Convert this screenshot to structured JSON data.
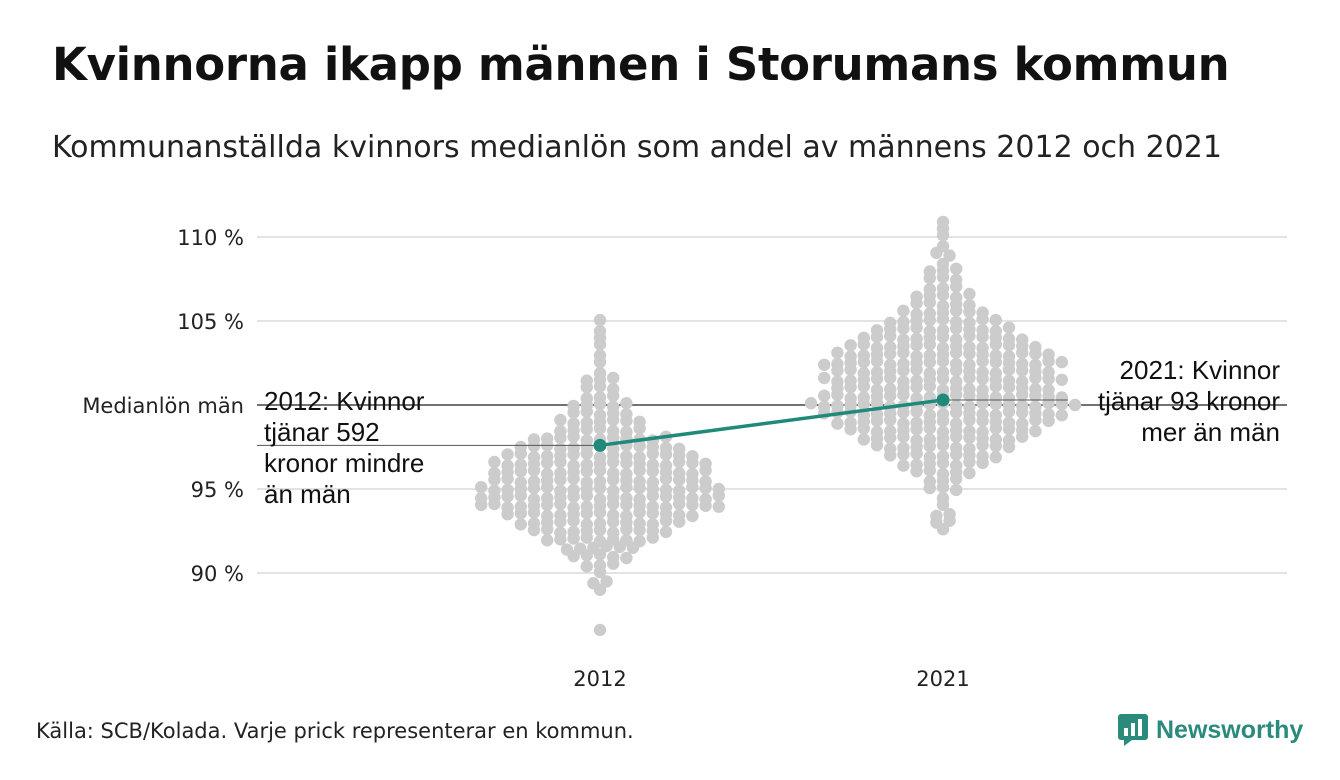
{
  "title": "Kvinnorna ikapp männen i Storumans kommun",
  "subtitle": "Kommunanställda kvinnors medianlön som andel av männens 2012 och 2021",
  "source": "Källa: SCB/Kolada. Varje prick representerar en kommun.",
  "brand": {
    "name": "Newsworthy",
    "icon": "newsworthy-logo-icon",
    "color": "#2a8a7b"
  },
  "chart_data": {
    "type": "scatter",
    "title": "Kvinnorna ikapp männen i Storumans kommun",
    "subtitle": "Kommunanställda kvinnors medianlön som andel av männens 2012 och 2021",
    "categories": [
      "2012",
      "2021"
    ],
    "yticks": [
      {
        "value": 110,
        "label": "110 %"
      },
      {
        "value": 105,
        "label": "105 %"
      },
      {
        "value": 95,
        "label": "95 %"
      },
      {
        "value": 90,
        "label": "90 %"
      }
    ],
    "reference_line": {
      "value": 100,
      "label": "Medianlön män"
    },
    "ylim": [
      86,
      112
    ],
    "grid": true,
    "dot_color": "#cccccc",
    "highlight_color": "#1f8a7a",
    "highlight": [
      {
        "category": "2012",
        "value": 97.6,
        "note": [
          "2012: Kvinnor",
          "tjänar 592",
          "kronor mindre",
          "än män"
        ]
      },
      {
        "category": "2021",
        "value": 100.3,
        "note": [
          "2021: Kvinnor",
          "tjänar 93 kronor",
          "mer än män"
        ]
      }
    ],
    "distributions": [
      {
        "category": "2012",
        "bins": [
          {
            "value": 86.5,
            "count": 1
          },
          {
            "value": 89.0,
            "count": 1
          },
          {
            "value": 89.5,
            "count": 2
          },
          {
            "value": 90.0,
            "count": 1
          },
          {
            "value": 90.5,
            "count": 3
          },
          {
            "value": 91.0,
            "count": 5
          },
          {
            "value": 91.5,
            "count": 6
          },
          {
            "value": 92.0,
            "count": 9
          },
          {
            "value": 92.5,
            "count": 11
          },
          {
            "value": 93.0,
            "count": 13
          },
          {
            "value": 93.5,
            "count": 15
          },
          {
            "value": 94.0,
            "count": 19
          },
          {
            "value": 94.5,
            "count": 19
          },
          {
            "value": 95.0,
            "count": 19
          },
          {
            "value": 95.5,
            "count": 17
          },
          {
            "value": 96.0,
            "count": 17
          },
          {
            "value": 96.5,
            "count": 17
          },
          {
            "value": 97.0,
            "count": 15
          },
          {
            "value": 97.5,
            "count": 13
          },
          {
            "value": 98.0,
            "count": 11
          },
          {
            "value": 98.5,
            "count": 7
          },
          {
            "value": 99.0,
            "count": 7
          },
          {
            "value": 99.5,
            "count": 5
          },
          {
            "value": 100.0,
            "count": 5
          },
          {
            "value": 100.5,
            "count": 3
          },
          {
            "value": 101.0,
            "count": 3
          },
          {
            "value": 101.5,
            "count": 3
          },
          {
            "value": 102.0,
            "count": 1
          },
          {
            "value": 102.5,
            "count": 1
          },
          {
            "value": 103.0,
            "count": 1
          },
          {
            "value": 103.5,
            "count": 1
          },
          {
            "value": 104.0,
            "count": 1
          },
          {
            "value": 104.5,
            "count": 1
          },
          {
            "value": 105.0,
            "count": 1
          }
        ]
      },
      {
        "category": "2021",
        "bins": [
          {
            "value": 92.5,
            "count": 1
          },
          {
            "value": 93.0,
            "count": 2
          },
          {
            "value": 93.5,
            "count": 2
          },
          {
            "value": 94.0,
            "count": 1
          },
          {
            "value": 94.5,
            "count": 1
          },
          {
            "value": 95.0,
            "count": 3
          },
          {
            "value": 95.5,
            "count": 3
          },
          {
            "value": 96.0,
            "count": 5
          },
          {
            "value": 96.5,
            "count": 7
          },
          {
            "value": 97.0,
            "count": 9
          },
          {
            "value": 97.5,
            "count": 11
          },
          {
            "value": 98.0,
            "count": 13
          },
          {
            "value": 98.5,
            "count": 15
          },
          {
            "value": 99.0,
            "count": 17
          },
          {
            "value": 99.5,
            "count": 19
          },
          {
            "value": 100.0,
            "count": 21
          },
          {
            "value": 100.5,
            "count": 19
          },
          {
            "value": 101.0,
            "count": 17
          },
          {
            "value": 101.5,
            "count": 19
          },
          {
            "value": 102.0,
            "count": 17
          },
          {
            "value": 102.5,
            "count": 19
          },
          {
            "value": 103.0,
            "count": 17
          },
          {
            "value": 103.5,
            "count": 15
          },
          {
            "value": 104.0,
            "count": 13
          },
          {
            "value": 104.5,
            "count": 11
          },
          {
            "value": 105.0,
            "count": 9
          },
          {
            "value": 105.5,
            "count": 7
          },
          {
            "value": 106.0,
            "count": 5
          },
          {
            "value": 106.5,
            "count": 5
          },
          {
            "value": 107.0,
            "count": 3
          },
          {
            "value": 107.5,
            "count": 3
          },
          {
            "value": 108.0,
            "count": 3
          },
          {
            "value": 108.5,
            "count": 1
          },
          {
            "value": 109.0,
            "count": 2
          },
          {
            "value": 109.5,
            "count": 1
          },
          {
            "value": 110.0,
            "count": 1
          },
          {
            "value": 110.5,
            "count": 1
          },
          {
            "value": 111.0,
            "count": 1
          }
        ]
      }
    ]
  }
}
